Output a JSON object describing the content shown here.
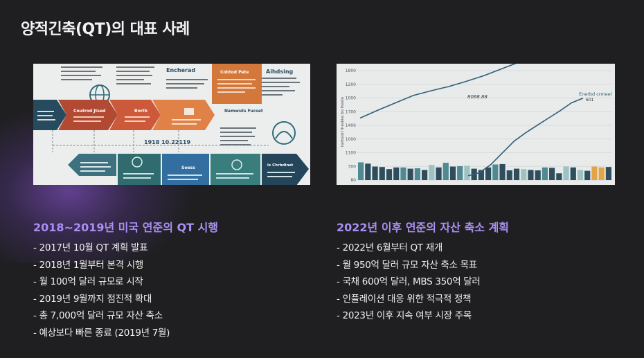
{
  "slide": {
    "title": "양적긴축(QT)의 대표 사례"
  },
  "left": {
    "heading": "2018~2019년 미국 연준의 QT 시행",
    "items": [
      "- 2017년 10월 QT 계획 발표",
      "- 2018년 1월부터 본격 시행",
      "- 월 100억 달러 규모로 시작",
      "- 2019년 9월까지 점진적 확대",
      "- 총 7,000억 달러 규모 자산 축소",
      "- 예상보다 빠른 종료 (2019년 7월)"
    ],
    "infographic": {
      "labels": [
        "Encherad",
        "Cobtod Pate",
        "Aihdsing",
        "Cnutrod Jtsed",
        "Bnrth",
        "Namwuts Fucset",
        "1918 10.22119",
        "Soess",
        "ls Chrbdinst"
      ]
    }
  },
  "right": {
    "heading": "2022년 이후 연준의 자산 축소 계획",
    "items": [
      "- 2022년 6월부터 QT 재개",
      "- 월 950억 달러 규모 자산 축소 목표",
      "- 국채 600억 달러, MBS 350억 달러",
      "- 인플레이션 대응 위한 적극적 정책",
      "- 2023년 이후 지속 여부 시장 주목"
    ],
    "chart_image": {
      "y_ticks": [
        "1800",
        "1200",
        "1000",
        "1700",
        "1406",
        "1000",
        "1100",
        "300",
        "80"
      ],
      "annotations": [
        "8068.88",
        "Enerbd crmeel",
        "601"
      ],
      "colors": {
        "line": "#2f5f78",
        "bar_dark": "#2e4e5e",
        "bar_teal": "#4f8a92",
        "bar_light": "#9cc3c4",
        "bar_orange": "#e3a347"
      },
      "chart_data": {
        "type": "bar",
        "title": "",
        "values": [
          210,
          195,
          160,
          155,
          130,
          150,
          150,
          135,
          140,
          120,
          180,
          150,
          205,
          160,
          165,
          170,
          135,
          120,
          150,
          185,
          190,
          115,
          135,
          130,
          120,
          115,
          150,
          145,
          80,
          160,
          150,
          120,
          110,
          160,
          150,
          155
        ],
        "bar_colors": [
          "teal",
          "dark",
          "dark",
          "dark",
          "dark",
          "dark",
          "teal",
          "dark",
          "teal",
          "dark",
          "light",
          "dark",
          "teal",
          "dark",
          "teal",
          "light",
          "dark",
          "dark",
          "dark",
          "teal",
          "dark",
          "dark",
          "dark",
          "light",
          "dark",
          "dark",
          "teal",
          "dark",
          "dark",
          "light",
          "dark",
          "light",
          "dark",
          "orange",
          "orange",
          "dark"
        ],
        "lines": [
          {
            "values": [
              1180,
              1330,
              1470,
              1610,
              1700,
              1780,
              1880,
              1990,
              2120,
              2250,
              2380
            ]
          },
          {
            "values": [
              80,
              140,
              300,
              520,
              740,
              900,
              1040,
              1180,
              1320,
              1470,
              1560
            ]
          }
        ]
      }
    }
  }
}
